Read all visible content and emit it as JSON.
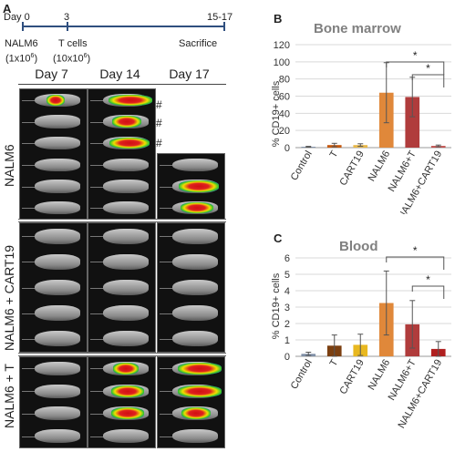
{
  "panels": {
    "a": "A",
    "b": "B",
    "c": "C"
  },
  "timeline": {
    "day_label": "Day 0",
    "day3": "3",
    "day_end": "15-17",
    "nalm6": "NALM6",
    "nalm6_dose": "(1x10",
    "nalm6_exp": "6",
    "tcells": "T cells",
    "tcells_dose": "(10x10",
    "tcells_exp": "6",
    "sacrifice": "Sacrifice"
  },
  "imaging": {
    "col_headers": [
      "Day 7",
      "Day 14",
      "Day 17"
    ],
    "row_labels": [
      "NALM6",
      "NALM6 + CART19",
      "NALM6 + T"
    ],
    "hash": "#"
  },
  "chart_data": [
    {
      "type": "bar",
      "title": "Bone marrow",
      "ylabel": "% CD19+ cells",
      "ylim": [
        0,
        120
      ],
      "yticks": [
        0,
        20,
        40,
        60,
        80,
        100,
        120
      ],
      "categories": [
        "Control",
        "T",
        "CART19",
        "NALM6",
        "NALM6+T",
        "NALM6+CART19"
      ],
      "values": [
        1,
        3,
        3,
        64,
        59,
        2
      ],
      "errors": [
        0.5,
        2,
        1.5,
        35,
        23,
        1
      ],
      "colors": [
        "#7f8fa6",
        "#c55a11",
        "#e8b84a",
        "#e0883a",
        "#b03c3c",
        "#c0504d"
      ],
      "significance": [
        "*",
        "*"
      ]
    },
    {
      "type": "bar",
      "title": "Blood",
      "ylabel": "% CD19+ cells",
      "ylim": [
        0,
        6
      ],
      "yticks": [
        0,
        1,
        2,
        3,
        4,
        5,
        6
      ],
      "categories": [
        "Control",
        "T",
        "CART19",
        "NALM6",
        "NALM6+T",
        "NALM6+CART19"
      ],
      "values": [
        0.15,
        0.65,
        0.7,
        3.25,
        1.95,
        0.45
      ],
      "errors": [
        0.1,
        0.65,
        0.65,
        1.95,
        1.45,
        0.45
      ],
      "colors": [
        "#7f8fa6",
        "#7b3f10",
        "#e8b820",
        "#e0883a",
        "#b03c3c",
        "#b02020"
      ],
      "significance": [
        "*",
        "*"
      ]
    }
  ]
}
